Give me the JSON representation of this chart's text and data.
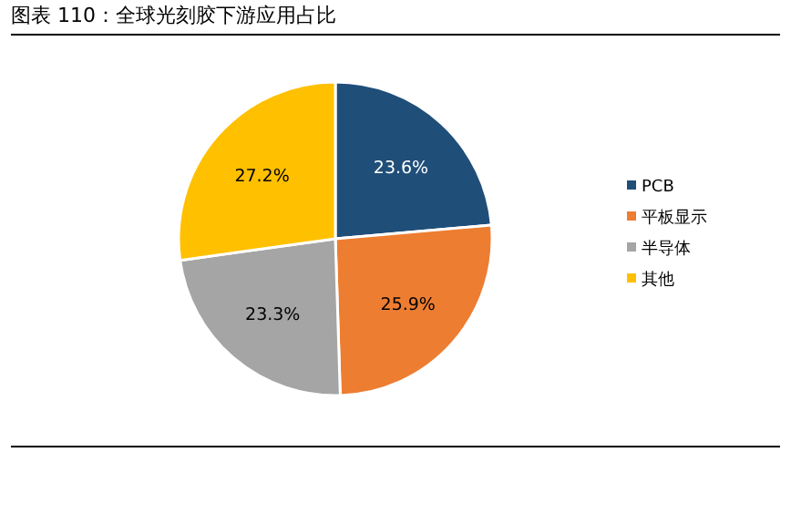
{
  "chart_data": {
    "type": "pie",
    "title": "图表 110：全球光刻胶下游应用占比",
    "categories": [
      "PCB",
      "平板显示",
      "半导体",
      "其他"
    ],
    "values": [
      23.6,
      25.9,
      23.3,
      27.2
    ],
    "colors": [
      "#1f4e79",
      "#ed7d31",
      "#a5a5a5",
      "#ffc000"
    ],
    "value_labels": [
      "23.6%",
      "25.9%",
      "23.3%",
      "27.2%"
    ],
    "legend": "right"
  }
}
